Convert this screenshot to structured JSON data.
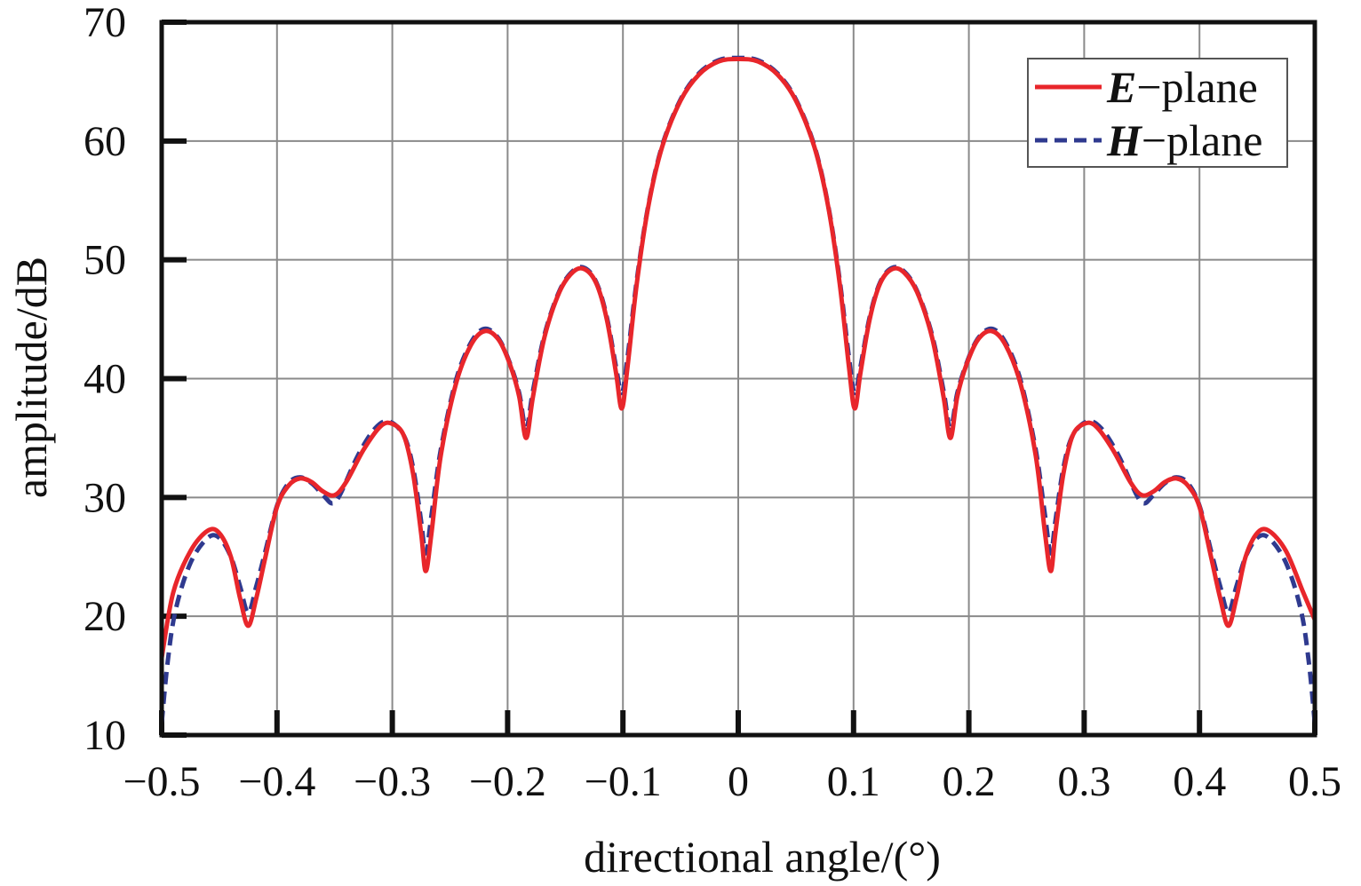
{
  "chart_data": {
    "type": "line",
    "title": "",
    "xlabel": "directional angle/(°)",
    "ylabel": "amplitude/dB",
    "xlim": [
      -0.5,
      0.5
    ],
    "ylim": [
      10,
      70
    ],
    "xticks": [
      -0.5,
      -0.4,
      -0.3,
      -0.2,
      -0.1,
      0,
      0.1,
      0.2,
      0.3,
      0.4,
      0.5
    ],
    "xtick_labels": [
      "−0.5",
      "−0.4",
      "−0.3",
      "−0.2",
      "−0.1",
      "0",
      "0.1",
      "0.2",
      "0.3",
      "0.4",
      "0.5"
    ],
    "yticks": [
      10,
      20,
      30,
      40,
      50,
      60,
      70
    ],
    "ytick_labels": [
      "10",
      "20",
      "30",
      "40",
      "50",
      "60",
      "70"
    ],
    "grid": true,
    "legend_position": "top-right",
    "series": [
      {
        "name": "E−plane",
        "name_emphasis": "E",
        "name_rest": "−plane",
        "color": "#e8262b",
        "dash": "solid",
        "points": [
          [
            -0.5,
            16.5
          ],
          [
            -0.49,
            22
          ],
          [
            -0.475,
            25.5
          ],
          [
            -0.46,
            27.2
          ],
          [
            -0.45,
            27
          ],
          [
            -0.44,
            25
          ],
          [
            -0.432,
            21.5
          ],
          [
            -0.425,
            19.2
          ],
          [
            -0.418,
            21.5
          ],
          [
            -0.41,
            25
          ],
          [
            -0.4,
            29.2
          ],
          [
            -0.39,
            31
          ],
          [
            -0.38,
            31.6
          ],
          [
            -0.37,
            31.3
          ],
          [
            -0.36,
            30.5
          ],
          [
            -0.35,
            30.2
          ],
          [
            -0.34,
            31.3
          ],
          [
            -0.325,
            34
          ],
          [
            -0.31,
            36
          ],
          [
            -0.3,
            36.2
          ],
          [
            -0.29,
            35.2
          ],
          [
            -0.282,
            32
          ],
          [
            -0.275,
            27
          ],
          [
            -0.271,
            23.8
          ],
          [
            -0.266,
            27
          ],
          [
            -0.258,
            33.5
          ],
          [
            -0.245,
            39.5
          ],
          [
            -0.232,
            42.8
          ],
          [
            -0.22,
            44
          ],
          [
            -0.208,
            43.3
          ],
          [
            -0.198,
            41.2
          ],
          [
            -0.19,
            38.5
          ],
          [
            -0.184,
            35
          ],
          [
            -0.178,
            38.5
          ],
          [
            -0.168,
            43.5
          ],
          [
            -0.155,
            47.3
          ],
          [
            -0.143,
            49
          ],
          [
            -0.133,
            49.2
          ],
          [
            -0.123,
            48
          ],
          [
            -0.114,
            45
          ],
          [
            -0.106,
            40.5
          ],
          [
            -0.101,
            37.5
          ],
          [
            -0.096,
            41
          ],
          [
            -0.088,
            48
          ],
          [
            -0.078,
            54.5
          ],
          [
            -0.066,
            59.5
          ],
          [
            -0.05,
            63.4
          ],
          [
            -0.034,
            65.6
          ],
          [
            -0.017,
            66.7
          ],
          [
            0,
            66.9
          ],
          [
            0.017,
            66.7
          ],
          [
            0.034,
            65.6
          ],
          [
            0.05,
            63.4
          ],
          [
            0.066,
            59.5
          ],
          [
            0.078,
            54.5
          ],
          [
            0.088,
            48
          ],
          [
            0.096,
            41
          ],
          [
            0.101,
            37.5
          ],
          [
            0.106,
            40.5
          ],
          [
            0.114,
            45
          ],
          [
            0.123,
            48
          ],
          [
            0.133,
            49.2
          ],
          [
            0.143,
            49
          ],
          [
            0.155,
            47.3
          ],
          [
            0.168,
            43.5
          ],
          [
            0.178,
            38.5
          ],
          [
            0.184,
            35
          ],
          [
            0.19,
            38.5
          ],
          [
            0.198,
            41.2
          ],
          [
            0.208,
            43.3
          ],
          [
            0.22,
            44
          ],
          [
            0.232,
            42.8
          ],
          [
            0.245,
            39.5
          ],
          [
            0.258,
            33.5
          ],
          [
            0.266,
            27
          ],
          [
            0.271,
            23.8
          ],
          [
            0.275,
            27
          ],
          [
            0.282,
            32
          ],
          [
            0.29,
            35.2
          ],
          [
            0.3,
            36.2
          ],
          [
            0.31,
            36
          ],
          [
            0.325,
            34
          ],
          [
            0.34,
            31.3
          ],
          [
            0.35,
            30.2
          ],
          [
            0.36,
            30.5
          ],
          [
            0.37,
            31.3
          ],
          [
            0.38,
            31.6
          ],
          [
            0.39,
            31
          ],
          [
            0.4,
            29.2
          ],
          [
            0.41,
            25
          ],
          [
            0.418,
            21.5
          ],
          [
            0.425,
            19.2
          ],
          [
            0.432,
            21.5
          ],
          [
            0.44,
            25
          ],
          [
            0.45,
            27
          ],
          [
            0.46,
            27.2
          ],
          [
            0.475,
            25.5
          ],
          [
            0.49,
            22
          ],
          [
            0.5,
            19.7
          ]
        ]
      },
      {
        "name": "H−plane",
        "name_emphasis": "H",
        "name_rest": "−plane",
        "color": "#2f3a8f",
        "dash": "dashed",
        "points": [
          [
            -0.5,
            11
          ],
          [
            -0.495,
            16
          ],
          [
            -0.488,
            20.5
          ],
          [
            -0.475,
            24.5
          ],
          [
            -0.46,
            26.6
          ],
          [
            -0.45,
            26.6
          ],
          [
            -0.44,
            25
          ],
          [
            -0.432,
            22.5
          ],
          [
            -0.425,
            20.3
          ],
          [
            -0.418,
            22.5
          ],
          [
            -0.41,
            25.5
          ],
          [
            -0.4,
            29.3
          ],
          [
            -0.39,
            31.2
          ],
          [
            -0.38,
            31.7
          ],
          [
            -0.37,
            31.2
          ],
          [
            -0.36,
            30.2
          ],
          [
            -0.352,
            29.5
          ],
          [
            -0.345,
            30.3
          ],
          [
            -0.33,
            33.5
          ],
          [
            -0.315,
            35.8
          ],
          [
            -0.303,
            36.4
          ],
          [
            -0.29,
            35.2
          ],
          [
            -0.282,
            32.5
          ],
          [
            -0.275,
            28
          ],
          [
            -0.271,
            25.3
          ],
          [
            -0.266,
            28.5
          ],
          [
            -0.258,
            34
          ],
          [
            -0.245,
            39.8
          ],
          [
            -0.232,
            43
          ],
          [
            -0.22,
            44.2
          ],
          [
            -0.208,
            43.4
          ],
          [
            -0.198,
            41.3
          ],
          [
            -0.19,
            38.8
          ],
          [
            -0.184,
            35.8
          ],
          [
            -0.178,
            39
          ],
          [
            -0.168,
            43.7
          ],
          [
            -0.155,
            47.4
          ],
          [
            -0.143,
            49.1
          ],
          [
            -0.133,
            49.3
          ],
          [
            -0.123,
            48.1
          ],
          [
            -0.114,
            45.2
          ],
          [
            -0.106,
            41
          ],
          [
            -0.101,
            38.8
          ],
          [
            -0.096,
            41.8
          ],
          [
            -0.088,
            48.3
          ],
          [
            -0.078,
            54.6
          ],
          [
            -0.066,
            59.6
          ],
          [
            -0.05,
            63.5
          ],
          [
            -0.034,
            65.7
          ],
          [
            -0.017,
            66.8
          ],
          [
            0,
            67
          ],
          [
            0.017,
            66.8
          ],
          [
            0.034,
            65.7
          ],
          [
            0.05,
            63.5
          ],
          [
            0.066,
            59.6
          ],
          [
            0.078,
            54.6
          ],
          [
            0.088,
            48.3
          ],
          [
            0.096,
            41.8
          ],
          [
            0.101,
            38.8
          ],
          [
            0.106,
            41
          ],
          [
            0.114,
            45.2
          ],
          [
            0.123,
            48.1
          ],
          [
            0.133,
            49.3
          ],
          [
            0.143,
            49.1
          ],
          [
            0.155,
            47.4
          ],
          [
            0.168,
            43.7
          ],
          [
            0.178,
            39
          ],
          [
            0.184,
            35.8
          ],
          [
            0.19,
            38.8
          ],
          [
            0.198,
            41.3
          ],
          [
            0.208,
            43.4
          ],
          [
            0.22,
            44.2
          ],
          [
            0.232,
            43
          ],
          [
            0.245,
            39.8
          ],
          [
            0.258,
            34
          ],
          [
            0.266,
            28.5
          ],
          [
            0.271,
            25.3
          ],
          [
            0.275,
            28
          ],
          [
            0.282,
            32.5
          ],
          [
            0.29,
            35.2
          ],
          [
            0.303,
            36.4
          ],
          [
            0.315,
            35.8
          ],
          [
            0.33,
            33.5
          ],
          [
            0.345,
            30.3
          ],
          [
            0.352,
            29.5
          ],
          [
            0.36,
            30.2
          ],
          [
            0.37,
            31.2
          ],
          [
            0.38,
            31.7
          ],
          [
            0.39,
            31.2
          ],
          [
            0.4,
            29.3
          ],
          [
            0.41,
            25.5
          ],
          [
            0.418,
            22.5
          ],
          [
            0.425,
            20.3
          ],
          [
            0.432,
            22.5
          ],
          [
            0.44,
            25
          ],
          [
            0.45,
            26.6
          ],
          [
            0.46,
            26.6
          ],
          [
            0.475,
            24.5
          ],
          [
            0.488,
            20.5
          ],
          [
            0.495,
            16
          ],
          [
            0.5,
            11
          ]
        ]
      }
    ]
  }
}
